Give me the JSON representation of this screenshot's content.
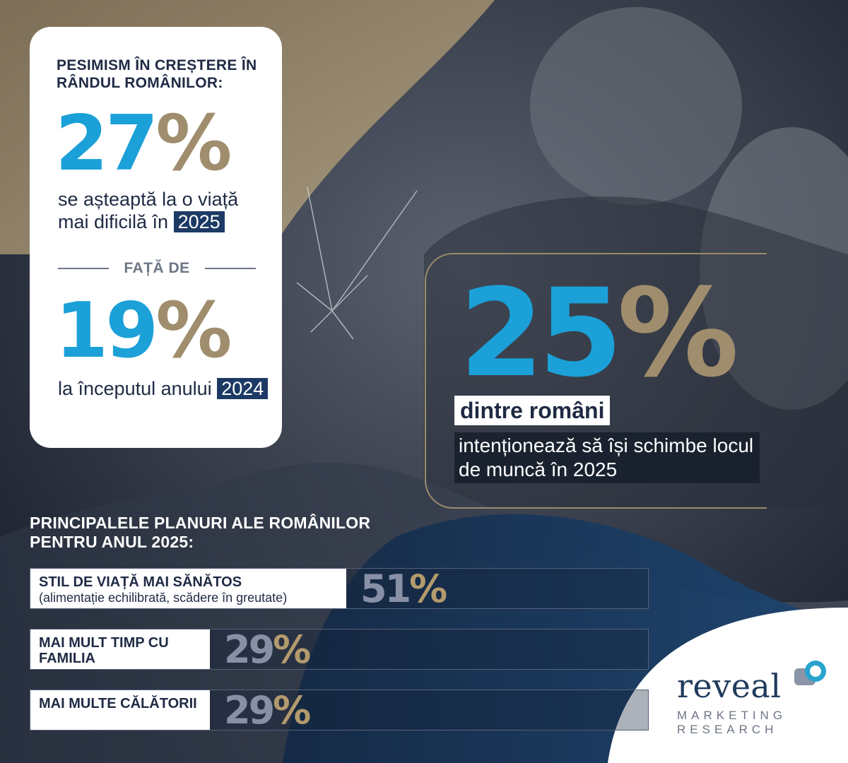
{
  "colors": {
    "blue": "#1ba0d8",
    "gold": "#a08d6d",
    "navy": "#1c3a64"
  },
  "headline": "PESIMISM ÎN CREȘTERE ÎN RÂNDUL ROMÂNILOR:",
  "stat_2025": {
    "value": "27",
    "symbol": "%",
    "text": "se așteaptă la o viață mai dificilă în",
    "year": "2025"
  },
  "divider_text": "FAȚĂ DE",
  "stat_2024": {
    "value": "19",
    "symbol": "%",
    "text": "la începutul anului",
    "year": "2024"
  },
  "job_change": {
    "value": "25",
    "symbol": "%",
    "line1": "dintre români",
    "line2": "intenționează să își schimbe locul de muncă în 2025"
  },
  "chart_data": {
    "type": "bar",
    "title": "PRINCIPALELE PLANURI ALE ROMÂNILOR PENTRU ANUL 2025:",
    "categories": [
      "STIL DE VIAȚĂ MAI SĂNĂTOS",
      "MAI MULT TIMP CU FAMILIA",
      "MAI MULTE CĂLĂTORII"
    ],
    "category_notes": [
      "(alimentație echilibrată, scădere în greutate)",
      "",
      ""
    ],
    "values": [
      51,
      29,
      29
    ],
    "unit": "%",
    "ylim": [
      0,
      100
    ]
  },
  "logo": {
    "word": "reveal",
    "line1": "MARKETING",
    "line2": "RESEARCH"
  }
}
